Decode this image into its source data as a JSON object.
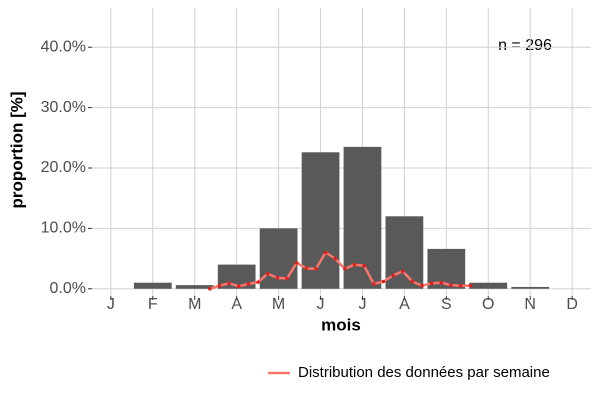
{
  "chart_data": {
    "type": "bar",
    "annotation": "n = 296",
    "x_label": "mois",
    "y_label": "proportion [%]",
    "categories": [
      "J",
      "F",
      "M",
      "A",
      "M",
      "J",
      "J",
      "A",
      "S",
      "O",
      "N",
      "D"
    ],
    "values": [
      0,
      1.0,
      0.6,
      4.0,
      10.0,
      22.6,
      23.5,
      12.0,
      6.6,
      1.0,
      0.3,
      0
    ],
    "color": "#595959",
    "xlim": [
      0.55,
      12.45
    ],
    "ylim": [
      -1.2,
      46.5
    ],
    "yticks": [
      {
        "value": 0,
        "label": "0.0%"
      },
      {
        "value": 10,
        "label": "10.0%"
      },
      {
        "value": 20,
        "label": "20.0%"
      },
      {
        "value": 30,
        "label": "30.0%"
      },
      {
        "value": 40,
        "label": "40.0%"
      }
    ],
    "grid": true,
    "legend": "bottom",
    "series": [
      {
        "name": "Distribution des données par semaine",
        "type": "line",
        "color": "#f8766d",
        "point_color": "#e3211c",
        "x": [
          3.36,
          3.59,
          3.82,
          4.05,
          4.28,
          4.51,
          4.74,
          4.97,
          5.2,
          5.43,
          5.66,
          5.89,
          6.12,
          6.35,
          6.58,
          6.81,
          7.04,
          7.27,
          7.5,
          7.73,
          7.96,
          8.19,
          8.42,
          8.65,
          8.88,
          9.11,
          9.34,
          9.57
        ],
        "values": [
          0.0,
          0.5,
          0.9,
          0.4,
          0.8,
          1.1,
          2.5,
          1.8,
          1.7,
          4.3,
          3.4,
          3.3,
          6.0,
          5.0,
          3.3,
          4.0,
          3.8,
          0.8,
          1.2,
          2.2,
          2.9,
          1.2,
          0.5,
          0.9,
          1.0,
          0.6,
          0.5,
          0.5
        ]
      }
    ]
  }
}
